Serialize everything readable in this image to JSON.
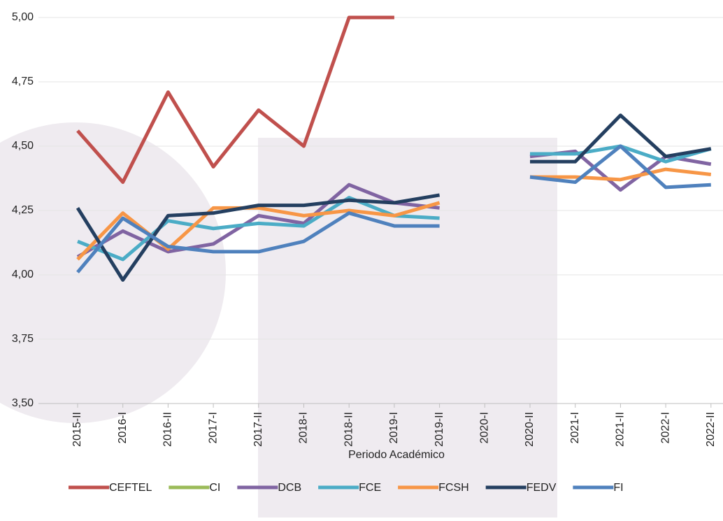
{
  "chart_data": {
    "type": "line",
    "x_label": "Periodo Académico",
    "categories": [
      "2015-II",
      "2016-I",
      "2016-II",
      "2017-I",
      "2017-II",
      "2018-I",
      "2018-II",
      "2019-I",
      "2019-II",
      "2020-I",
      "2020-II",
      "2021-I",
      "2021-II",
      "2022-I",
      "2022-II"
    ],
    "ylim": [
      3.5,
      5.0
    ],
    "yticks": [
      {
        "value": 3.5,
        "label": "3,50"
      },
      {
        "value": 3.75,
        "label": "3,75"
      },
      {
        "value": 4.0,
        "label": "4,00"
      },
      {
        "value": 4.25,
        "label": "4,25"
      },
      {
        "value": 4.5,
        "label": "4,50"
      },
      {
        "value": 4.75,
        "label": "4,75"
      },
      {
        "value": 5.0,
        "label": "5,00"
      }
    ],
    "grid": true,
    "legend": "bottom",
    "series": [
      {
        "name": "CEFTEL",
        "color": "#c0504d",
        "values": [
          4.56,
          4.36,
          4.71,
          4.42,
          4.64,
          4.5,
          5.0,
          5.0,
          null,
          null,
          null,
          null,
          null,
          null,
          null
        ]
      },
      {
        "name": "CI",
        "color": "#9bbb59",
        "values": [
          null,
          null,
          null,
          null,
          null,
          null,
          null,
          null,
          null,
          null,
          null,
          null,
          null,
          null,
          null
        ]
      },
      {
        "name": "DCB",
        "color": "#8064a2",
        "values": [
          4.07,
          4.17,
          4.09,
          4.12,
          4.23,
          4.2,
          4.35,
          4.28,
          4.26,
          null,
          4.46,
          4.48,
          4.33,
          4.46,
          4.43
        ]
      },
      {
        "name": "FCE",
        "color": "#4bacc6",
        "values": [
          4.13,
          4.06,
          4.21,
          4.18,
          4.2,
          4.19,
          4.3,
          4.23,
          4.22,
          null,
          4.47,
          4.47,
          4.5,
          4.44,
          4.49
        ]
      },
      {
        "name": "FCSH",
        "color": "#f79646",
        "values": [
          4.06,
          4.24,
          4.1,
          4.26,
          4.26,
          4.23,
          4.25,
          4.23,
          4.28,
          null,
          4.38,
          4.38,
          4.37,
          4.41,
          4.39
        ]
      },
      {
        "name": "FEDV",
        "color": "#243f60",
        "values": [
          4.26,
          3.98,
          4.23,
          4.24,
          4.27,
          4.27,
          4.29,
          4.28,
          4.31,
          null,
          4.44,
          4.44,
          4.62,
          4.46,
          4.49
        ]
      },
      {
        "name": "FI",
        "color": "#4f81bd",
        "values": [
          4.01,
          4.22,
          4.11,
          4.09,
          4.09,
          4.13,
          4.24,
          4.19,
          4.19,
          null,
          4.38,
          4.36,
          4.5,
          4.34,
          4.35
        ]
      }
    ]
  }
}
